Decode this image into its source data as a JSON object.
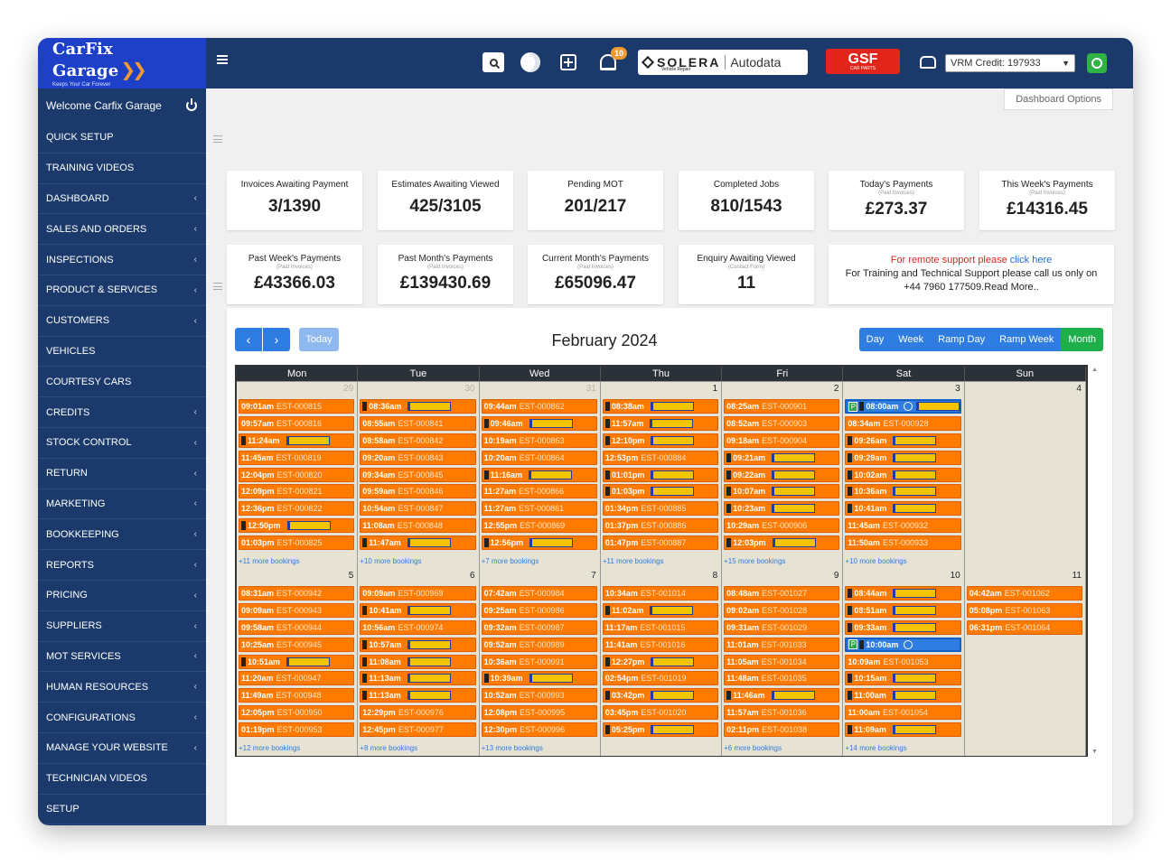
{
  "brand": {
    "name": "CarFix Garage",
    "tagline": "Keeps Your Car Forever"
  },
  "sidebar": {
    "welcome": "Welcome Carfix Garage",
    "items": [
      {
        "label": "QUICK SETUP",
        "chev": ""
      },
      {
        "label": "TRAINING VIDEOS",
        "chev": ""
      },
      {
        "label": "DASHBOARD",
        "chev": "‹"
      },
      {
        "label": "SALES AND ORDERS",
        "chev": "‹"
      },
      {
        "label": "INSPECTIONS",
        "chev": "‹"
      },
      {
        "label": "PRODUCT & SERVICES",
        "chev": "‹"
      },
      {
        "label": "CUSTOMERS",
        "chev": "‹"
      },
      {
        "label": "VEHICLES",
        "chev": ""
      },
      {
        "label": "COURTESY CARS",
        "chev": ""
      },
      {
        "label": "CREDITS",
        "chev": "‹"
      },
      {
        "label": "STOCK CONTROL",
        "chev": "‹"
      },
      {
        "label": "RETURN",
        "chev": "‹"
      },
      {
        "label": "MARKETING",
        "chev": "‹"
      },
      {
        "label": "BOOKKEEPING",
        "chev": "‹"
      },
      {
        "label": "REPORTS",
        "chev": "‹"
      },
      {
        "label": "PRICING",
        "chev": "‹"
      },
      {
        "label": "SUPPLIERS",
        "chev": "‹"
      },
      {
        "label": "MOT SERVICES",
        "chev": "‹"
      },
      {
        "label": "HUMAN RESOURCES",
        "chev": "‹"
      },
      {
        "label": "CONFIGURATIONS",
        "chev": "‹"
      },
      {
        "label": "MANAGE YOUR WEBSITE",
        "chev": "‹"
      },
      {
        "label": "TECHNICIAN VIDEOS",
        "chev": ""
      },
      {
        "label": "SETUP",
        "chev": ""
      }
    ]
  },
  "topbar": {
    "notif_count": "10",
    "solera": "SOLERA",
    "solera_sub": "Vehicle Repair",
    "autodata": "Autodata",
    "gsf": "GSF",
    "gsf_sub": "CAR PARTS",
    "vrm_credit": "VRM Credit: 197933"
  },
  "dashboard_options": "Dashboard Options",
  "cards_row1": [
    {
      "title": "Invoices Awaiting Payment",
      "sub": "",
      "value": "3/1390"
    },
    {
      "title": "Estimates Awaiting Viewed",
      "sub": "",
      "value": "425/3105"
    },
    {
      "title": "Pending MOT",
      "sub": "",
      "value": "201/217"
    },
    {
      "title": "Completed Jobs",
      "sub": "",
      "value": "810/1543"
    },
    {
      "title": "Today's Payments",
      "sub": "(Paid Invoices)",
      "value": "£273.37"
    },
    {
      "title": "This Week's Payments",
      "sub": "(Paid Invoices)",
      "value": "£14316.45"
    }
  ],
  "cards_row2": [
    {
      "title": "Past Week's Payments",
      "sub": "(Paid Invoices)",
      "value": "£43366.03"
    },
    {
      "title": "Past Month's Payments",
      "sub": "(Paid Invoices)",
      "value": "£139430.69"
    },
    {
      "title": "Current Month's Payments",
      "sub": "(Paid Invoices)",
      "value": "£65096.47"
    },
    {
      "title": "Enquiry Awaiting Viewed",
      "sub": "(Contact Form)",
      "value": "11"
    }
  ],
  "support": {
    "line1_text": "For remote support please ",
    "line1_link": "click here",
    "line2": "For Training and Technical Support please call us only on",
    "phone": "+44 7960 177509.",
    "read_more": "Read More.."
  },
  "calendar": {
    "title": "February 2024",
    "today_label": "Today",
    "prev": "‹",
    "next": "›",
    "views": [
      "Day",
      "Week",
      "Ramp Day",
      "Ramp Week",
      "Month"
    ],
    "active_view": "Month",
    "dow": [
      "Mon",
      "Tue",
      "Wed",
      "Thu",
      "Fri",
      "Sat",
      "Sun"
    ],
    "weeks": [
      [
        {
          "num": "29",
          "other": true,
          "more": "+11 more bookings",
          "events": [
            {
              "time": "09:01am",
              "ref": "EST-000815"
            },
            {
              "time": "09:57am",
              "ref": "EST-000816"
            },
            {
              "time": "11:24am",
              "ref": "",
              "icon": "i",
              "plate": true
            },
            {
              "time": "11:45am",
              "ref": "EST-000819"
            },
            {
              "time": "12:04pm",
              "ref": "EST-000820"
            },
            {
              "time": "12:09pm",
              "ref": "EST-000821"
            },
            {
              "time": "12:36pm",
              "ref": "EST-000822"
            },
            {
              "time": "12:50pm",
              "ref": "",
              "icon": "i",
              "plate": true
            },
            {
              "time": "01:03pm",
              "ref": "EST-000825"
            }
          ]
        },
        {
          "num": "30",
          "other": true,
          "more": "+10 more bookings",
          "events": [
            {
              "time": "08:36am",
              "ref": "",
              "icon": "i",
              "plate": true
            },
            {
              "time": "08:55am",
              "ref": "EST-000841"
            },
            {
              "time": "08:58am",
              "ref": "EST-000842"
            },
            {
              "time": "09:20am",
              "ref": "EST-000843"
            },
            {
              "time": "09:34am",
              "ref": "EST-000845"
            },
            {
              "time": "09:59am",
              "ref": "EST-000846"
            },
            {
              "time": "10:54am",
              "ref": "EST-000847"
            },
            {
              "time": "11:08am",
              "ref": "EST-000848"
            },
            {
              "time": "11:47am",
              "ref": "",
              "icon": "i",
              "plate": true
            }
          ]
        },
        {
          "num": "31",
          "other": true,
          "more": "+7 more bookings",
          "events": [
            {
              "time": "09:44am",
              "ref": "EST-000862"
            },
            {
              "time": "09:46am",
              "ref": "",
              "icon": "i",
              "plate": true
            },
            {
              "time": "10:19am",
              "ref": "EST-000863"
            },
            {
              "time": "10:20am",
              "ref": "EST-000864"
            },
            {
              "time": "11:16am",
              "ref": "",
              "icon": "i",
              "plate": true
            },
            {
              "time": "11:27am",
              "ref": "EST-000866"
            },
            {
              "time": "11:27am",
              "ref": "EST-000861"
            },
            {
              "time": "12:55pm",
              "ref": "EST-000869"
            },
            {
              "time": "12:56pm",
              "ref": "",
              "icon": "i",
              "plate": true
            }
          ]
        },
        {
          "num": "1",
          "other": false,
          "more": "+11 more bookings",
          "events": [
            {
              "time": "08:38am",
              "ref": "",
              "icon": "i",
              "plate": true
            },
            {
              "time": "11:57am",
              "ref": "",
              "icon": "i",
              "plate": true
            },
            {
              "time": "12:10pm",
              "ref": "",
              "icon": "i",
              "plate": true
            },
            {
              "time": "12:53pm",
              "ref": "EST-000884"
            },
            {
              "time": "01:01pm",
              "ref": "",
              "icon": "i",
              "plate": true
            },
            {
              "time": "01:03pm",
              "ref": "",
              "icon": "i",
              "plate": true
            },
            {
              "time": "01:34pm",
              "ref": "EST-000885"
            },
            {
              "time": "01:37pm",
              "ref": "EST-000886"
            },
            {
              "time": "01:47pm",
              "ref": "EST-000887"
            }
          ]
        },
        {
          "num": "2",
          "other": false,
          "more": "+15 more bookings",
          "events": [
            {
              "time": "08:25am",
              "ref": "EST-000901"
            },
            {
              "time": "08:52am",
              "ref": "EST-000903"
            },
            {
              "time": "09:18am",
              "ref": "EST-000904"
            },
            {
              "time": "09:21am",
              "ref": "",
              "icon": "i",
              "plate": true
            },
            {
              "time": "09:22am",
              "ref": "",
              "icon": "i",
              "plate": true
            },
            {
              "time": "10:07am",
              "ref": "",
              "icon": "i",
              "plate": true
            },
            {
              "time": "10:23am",
              "ref": "",
              "icon": "i",
              "plate": true
            },
            {
              "time": "10:29am",
              "ref": "EST-000906"
            },
            {
              "time": "12:03pm",
              "ref": "",
              "icon": "i",
              "plate": true
            }
          ]
        },
        {
          "num": "3",
          "other": false,
          "more": "+10 more bookings",
          "events": [
            {
              "time": "08:00am",
              "ref": "",
              "icon": "p",
              "plate": true,
              "sel": true
            },
            {
              "time": "08:34am",
              "ref": "EST-000928"
            },
            {
              "time": "09:26am",
              "ref": "",
              "icon": "i",
              "plate": true
            },
            {
              "time": "09:29am",
              "ref": "",
              "icon": "i",
              "plate": true
            },
            {
              "time": "10:02am",
              "ref": "",
              "icon": "i",
              "plate": true
            },
            {
              "time": "10:36am",
              "ref": "",
              "icon": "i",
              "plate": true
            },
            {
              "time": "10:41am",
              "ref": "",
              "icon": "i",
              "plate": true
            },
            {
              "time": "11:45am",
              "ref": "EST-000932"
            },
            {
              "time": "11:50am",
              "ref": "EST-000933"
            }
          ]
        },
        {
          "num": "4",
          "other": false,
          "more": "",
          "events": []
        }
      ],
      [
        {
          "num": "5",
          "other": false,
          "more": "+12 more bookings",
          "events": [
            {
              "time": "08:31am",
              "ref": "EST-000942"
            },
            {
              "time": "09:09am",
              "ref": "EST-000943"
            },
            {
              "time": "09:58am",
              "ref": "EST-000944"
            },
            {
              "time": "10:25am",
              "ref": "EST-000945"
            },
            {
              "time": "10:51am",
              "ref": "",
              "icon": "i",
              "plate": true
            },
            {
              "time": "11:20am",
              "ref": "EST-000947"
            },
            {
              "time": "11:49am",
              "ref": "EST-000948"
            },
            {
              "time": "12:05pm",
              "ref": "EST-000950"
            },
            {
              "time": "01:19pm",
              "ref": "EST-000953"
            }
          ]
        },
        {
          "num": "6",
          "other": false,
          "more": "+8 more bookings",
          "events": [
            {
              "time": "09:09am",
              "ref": "EST-000969"
            },
            {
              "time": "10:41am",
              "ref": "",
              "icon": "i",
              "plate": true
            },
            {
              "time": "10:56am",
              "ref": "EST-000974"
            },
            {
              "time": "10:57am",
              "ref": "",
              "icon": "i",
              "plate": true
            },
            {
              "time": "11:08am",
              "ref": "",
              "icon": "i",
              "plate": true
            },
            {
              "time": "11:13am",
              "ref": "",
              "icon": "i",
              "plate": true
            },
            {
              "time": "11:13am",
              "ref": "",
              "icon": "i",
              "plate": true
            },
            {
              "time": "12:29pm",
              "ref": "EST-000976"
            },
            {
              "time": "12:45pm",
              "ref": "EST-000977"
            }
          ]
        },
        {
          "num": "7",
          "other": false,
          "more": "+13 more bookings",
          "events": [
            {
              "time": "07:42am",
              "ref": "EST-000984"
            },
            {
              "time": "09:25am",
              "ref": "EST-000986"
            },
            {
              "time": "09:32am",
              "ref": "EST-000987"
            },
            {
              "time": "09:52am",
              "ref": "EST-000989"
            },
            {
              "time": "10:36am",
              "ref": "EST-000991"
            },
            {
              "time": "10:39am",
              "ref": "",
              "icon": "i",
              "plate": true
            },
            {
              "time": "10:52am",
              "ref": "EST-000993"
            },
            {
              "time": "12:08pm",
              "ref": "EST-000995"
            },
            {
              "time": "12:30pm",
              "ref": "EST-000996"
            }
          ]
        },
        {
          "num": "8",
          "other": false,
          "more": "",
          "events": [
            {
              "time": "10:34am",
              "ref": "EST-001014"
            },
            {
              "time": "11:02am",
              "ref": "",
              "icon": "i",
              "plate": true
            },
            {
              "time": "11:17am",
              "ref": "EST-001015"
            },
            {
              "time": "11:41am",
              "ref": "EST-001016"
            },
            {
              "time": "12:27pm",
              "ref": "",
              "icon": "i",
              "plate": true
            },
            {
              "time": "02:54pm",
              "ref": "EST-001019"
            },
            {
              "time": "03:42pm",
              "ref": "",
              "icon": "i",
              "plate": true
            },
            {
              "time": "03:45pm",
              "ref": "EST-001020"
            },
            {
              "time": "05:25pm",
              "ref": "",
              "icon": "i",
              "plate": true
            }
          ]
        },
        {
          "num": "9",
          "other": false,
          "more": "+6 more bookings",
          "events": [
            {
              "time": "08:48am",
              "ref": "EST-001027"
            },
            {
              "time": "09:02am",
              "ref": "EST-001028"
            },
            {
              "time": "09:31am",
              "ref": "EST-001029"
            },
            {
              "time": "11:01am",
              "ref": "EST-001033"
            },
            {
              "time": "11:05am",
              "ref": "EST-001034"
            },
            {
              "time": "11:48am",
              "ref": "EST-001035"
            },
            {
              "time": "11:46am",
              "ref": "",
              "icon": "i",
              "plate": true
            },
            {
              "time": "11:57am",
              "ref": "EST-001036"
            },
            {
              "time": "02:11pm",
              "ref": "EST-001038"
            }
          ]
        },
        {
          "num": "10",
          "other": false,
          "more": "+14 more bookings",
          "events": [
            {
              "time": "08:44am",
              "ref": "",
              "icon": "i",
              "plate": true
            },
            {
              "time": "08:51am",
              "ref": "",
              "icon": "i",
              "plate": true
            },
            {
              "time": "09:33am",
              "ref": "",
              "icon": "i",
              "plate": true
            },
            {
              "time": "10:00am",
              "ref": "",
              "icon": "p",
              "sel": true
            },
            {
              "time": "10:09am",
              "ref": "EST-001053"
            },
            {
              "time": "10:15am",
              "ref": "",
              "icon": "i",
              "plate": true
            },
            {
              "time": "11:00am",
              "ref": "",
              "icon": "i",
              "plate": true
            },
            {
              "time": "11:00am",
              "ref": "EST-001054"
            },
            {
              "time": "11:09am",
              "ref": "",
              "icon": "i",
              "plate": true
            }
          ]
        },
        {
          "num": "11",
          "other": false,
          "more": "",
          "events": [
            {
              "time": "04:42am",
              "ref": "EST-001062"
            },
            {
              "time": "05:08pm",
              "ref": "EST-001063"
            },
            {
              "time": "06:31pm",
              "ref": "EST-001064"
            }
          ]
        }
      ]
    ]
  },
  "colors": {
    "sidebar": "#1b3a6b",
    "logo_bg": "#1e40c8",
    "event": "#ff7a00",
    "primary": "#2f7de1",
    "active_view": "#1eae4a"
  }
}
